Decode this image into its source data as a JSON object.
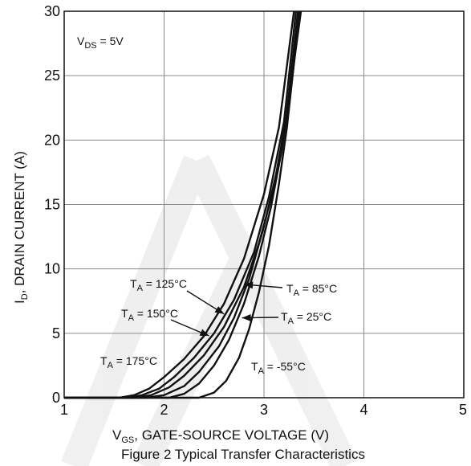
{
  "chart_data": {
    "type": "line",
    "title": "",
    "caption": "Figure 2 Typical Transfer Characteristics",
    "xlabel": {
      "main": "V",
      "sub": "GS",
      "rest": ", GATE-SOURCE VOLTAGE (V)"
    },
    "ylabel": {
      "main": "I",
      "sub": "D",
      "rest": ", DRAIN CURRENT (A)"
    },
    "xlim": [
      1,
      5
    ],
    "ylim": [
      0,
      30
    ],
    "xticks": [
      1,
      2,
      3,
      4,
      5
    ],
    "yticks": [
      0,
      5,
      10,
      15,
      20,
      25,
      30
    ],
    "grid": true,
    "condition": {
      "main": "V",
      "sub": "DS",
      "rest": " = 5V"
    },
    "series": [
      {
        "name": "T_A = 175°C",
        "points": [
          [
            1.0,
            0
          ],
          [
            1.55,
            0
          ],
          [
            1.7,
            0.2
          ],
          [
            1.85,
            0.7
          ],
          [
            2.0,
            1.6
          ],
          [
            2.2,
            3.0
          ],
          [
            2.4,
            4.8
          ],
          [
            2.6,
            7.3
          ],
          [
            2.8,
            10.8
          ],
          [
            3.0,
            15.8
          ],
          [
            3.15,
            21.0
          ],
          [
            3.3,
            30.0
          ]
        ]
      },
      {
        "name": "T_A = 150°C",
        "points": [
          [
            1.0,
            0
          ],
          [
            1.62,
            0
          ],
          [
            1.78,
            0.2
          ],
          [
            1.95,
            0.7
          ],
          [
            2.1,
            1.6
          ],
          [
            2.3,
            3.1
          ],
          [
            2.5,
            5.0
          ],
          [
            2.7,
            7.6
          ],
          [
            2.9,
            11.3
          ],
          [
            3.05,
            15.6
          ],
          [
            3.2,
            21.4
          ],
          [
            3.32,
            30.0
          ]
        ]
      },
      {
        "name": "T_A = 125°C",
        "points": [
          [
            1.0,
            0
          ],
          [
            1.7,
            0
          ],
          [
            1.87,
            0.2
          ],
          [
            2.05,
            0.8
          ],
          [
            2.2,
            1.7
          ],
          [
            2.4,
            3.3
          ],
          [
            2.6,
            5.5
          ],
          [
            2.8,
            8.6
          ],
          [
            2.95,
            12.0
          ],
          [
            3.1,
            16.3
          ],
          [
            3.22,
            21.5
          ],
          [
            3.34,
            30.0
          ]
        ]
      },
      {
        "name": "T_A = 85°C",
        "points": [
          [
            1.0,
            0
          ],
          [
            1.82,
            0
          ],
          [
            2.0,
            0.2
          ],
          [
            2.2,
            0.9
          ],
          [
            2.35,
            2.0
          ],
          [
            2.55,
            4.0
          ],
          [
            2.7,
            6.2
          ],
          [
            2.85,
            9.2
          ],
          [
            3.0,
            13.3
          ],
          [
            3.12,
            17.3
          ],
          [
            3.24,
            22.4
          ],
          [
            3.35,
            30.0
          ]
        ]
      },
      {
        "name": "T_A = 25°C",
        "points": [
          [
            1.0,
            0
          ],
          [
            2.05,
            0
          ],
          [
            2.2,
            0.3
          ],
          [
            2.35,
            1.1
          ],
          [
            2.5,
            2.5
          ],
          [
            2.65,
            4.5
          ],
          [
            2.8,
            7.3
          ],
          [
            2.95,
            11.0
          ],
          [
            3.07,
            14.8
          ],
          [
            3.18,
            19.3
          ],
          [
            3.28,
            24.6
          ],
          [
            3.36,
            30.0
          ]
        ]
      },
      {
        "name": "T_A = -55°C",
        "points": [
          [
            1.0,
            0
          ],
          [
            2.35,
            0
          ],
          [
            2.5,
            0.4
          ],
          [
            2.62,
            1.3
          ],
          [
            2.75,
            3.1
          ],
          [
            2.85,
            5.3
          ],
          [
            2.95,
            8.2
          ],
          [
            3.05,
            11.8
          ],
          [
            3.15,
            16.6
          ],
          [
            3.23,
            21.0
          ],
          [
            3.3,
            26.0
          ],
          [
            3.37,
            30.0
          ]
        ]
      }
    ],
    "annotations": [
      {
        "id": "t125",
        "main": "T",
        "sub": "A",
        "rest": " = 125°C",
        "arrow_to": [
          2.6,
          6.5
        ]
      },
      {
        "id": "t150",
        "main": "T",
        "sub": "A",
        "rest": " = 150°C",
        "arrow_to": [
          2.45,
          4.8
        ]
      },
      {
        "id": "t175",
        "main": "T",
        "sub": "A",
        "rest": " = 175°C",
        "arrow_to": null
      },
      {
        "id": "t85",
        "main": "T",
        "sub": "A",
        "rest": " = 85°C",
        "arrow_to": [
          2.8,
          8.8
        ]
      },
      {
        "id": "t25",
        "main": "T",
        "sub": "A",
        "rest": " = 25°C",
        "arrow_to": [
          2.78,
          6.2
        ]
      },
      {
        "id": "tm55",
        "main": "T",
        "sub": "A",
        "rest": " = -55°C",
        "arrow_to": null
      }
    ]
  }
}
